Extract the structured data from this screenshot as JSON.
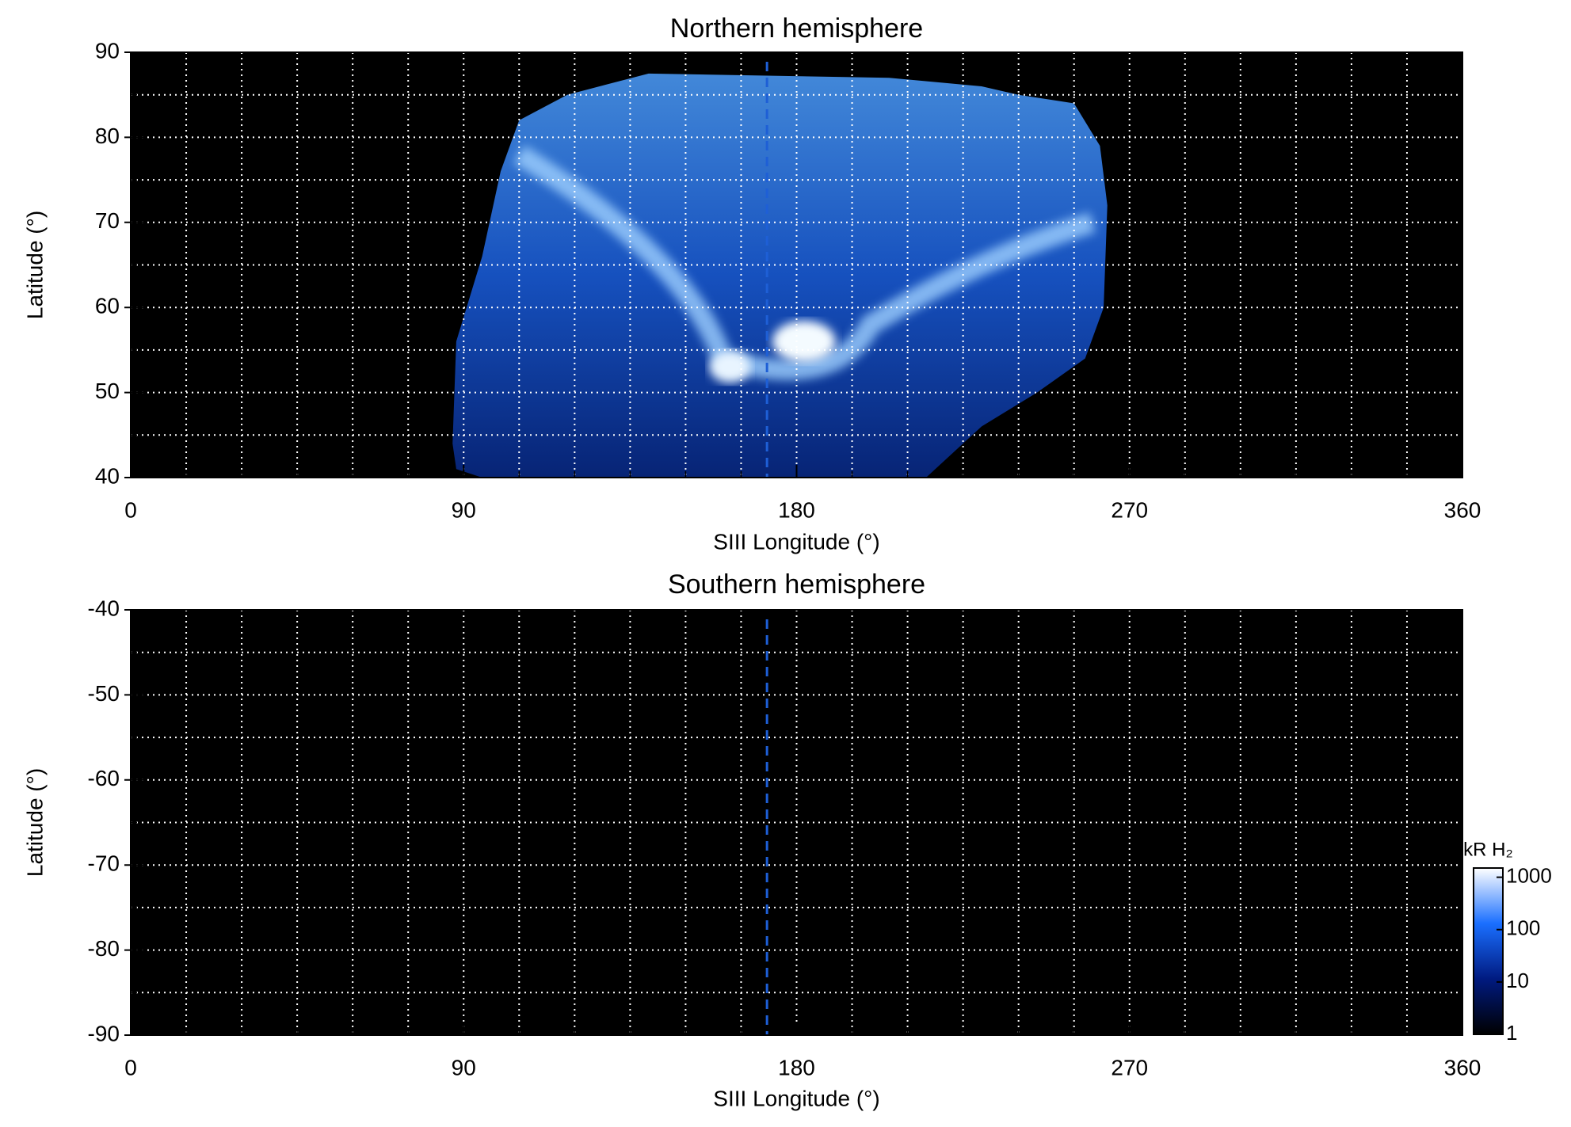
{
  "chart_data": [
    {
      "type": "heatmap",
      "title": "Northern hemisphere",
      "x_label": "SIII Longitude (°)",
      "y_label": "Latitude (°)",
      "xlim": [
        0,
        360
      ],
      "xticks": [
        0,
        90,
        180,
        270,
        360
      ],
      "xminorticks": [
        15,
        30,
        45,
        60,
        75,
        105,
        120,
        135,
        150,
        165,
        195,
        210,
        225,
        240,
        255,
        285,
        300,
        315,
        330,
        345
      ],
      "ylim": [
        40,
        90
      ],
      "yticks": [
        40,
        50,
        60,
        70,
        80,
        90
      ],
      "yminorticks": [
        45,
        55,
        65,
        75,
        85
      ],
      "grid": true,
      "reference_line_x": 172,
      "reference_color": "#1e5fd6"
    },
    {
      "type": "heatmap",
      "title": "Southern hemisphere",
      "x_label": "SIII Longitude (°)",
      "y_label": "Latitude (°)",
      "xlim": [
        0,
        360
      ],
      "xticks": [
        0,
        90,
        180,
        270,
        360
      ],
      "xminorticks": [
        15,
        30,
        45,
        60,
        75,
        105,
        120,
        135,
        150,
        165,
        195,
        210,
        225,
        240,
        255,
        285,
        300,
        315,
        330,
        345
      ],
      "ylim": [
        -90,
        -40
      ],
      "yticks": [
        -90,
        -80,
        -70,
        -60,
        -50,
        -40
      ],
      "yminorticks": [
        -85,
        -75,
        -65,
        -55,
        -45
      ],
      "grid": true,
      "reference_line_x": 172,
      "reference_color": "#1e5fd6",
      "colorbar": {
        "label": "kR H₂",
        "log": true,
        "lim": [
          1,
          1500
        ],
        "ticks": [
          1,
          10,
          100,
          1000
        ],
        "colors": [
          "#000000",
          "#001a80",
          "#1a6fff",
          "#ffffff"
        ]
      }
    }
  ]
}
